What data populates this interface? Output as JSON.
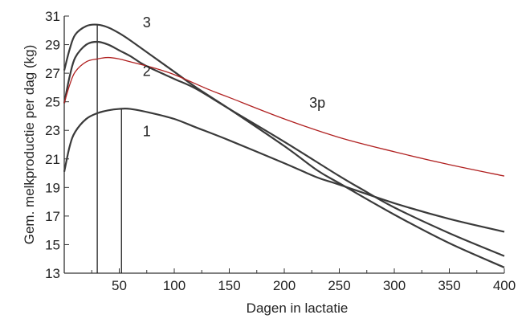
{
  "chart_data": {
    "type": "line",
    "xlabel": "Dagen in lactatie",
    "ylabel": "Gem. melkproductie per dag (kg)",
    "xlim": [
      0,
      400
    ],
    "ylim": [
      13,
      31
    ],
    "xticks": [
      50,
      100,
      150,
      200,
      250,
      300,
      350,
      400
    ],
    "yticks": [
      13,
      15,
      17,
      19,
      21,
      23,
      25,
      27,
      29,
      31
    ],
    "grid": false,
    "series": [
      {
        "name": "1",
        "color": "#3a3a3a",
        "x": [
          0,
          5,
          10,
          20,
          30,
          40,
          50,
          60,
          80,
          100,
          120,
          150,
          200,
          230,
          250,
          300,
          350,
          400
        ],
        "y": [
          20.1,
          21.9,
          22.9,
          23.8,
          24.2,
          24.4,
          24.5,
          24.5,
          24.2,
          23.8,
          23.2,
          22.3,
          20.7,
          19.7,
          19.2,
          17.9,
          16.8,
          15.9
        ]
      },
      {
        "name": "2",
        "color": "#3a3a3a",
        "x": [
          0,
          5,
          10,
          20,
          30,
          40,
          50,
          60,
          70,
          80,
          100,
          120,
          150,
          200,
          250,
          270,
          300,
          350,
          400
        ],
        "y": [
          24.9,
          26.8,
          28.1,
          29.0,
          29.2,
          29.0,
          28.6,
          28.2,
          27.7,
          27.3,
          26.6,
          25.9,
          24.5,
          22.2,
          19.8,
          18.9,
          17.6,
          15.8,
          14.2
        ]
      },
      {
        "name": "3",
        "color": "#3a3a3a",
        "x": [
          0,
          5,
          10,
          20,
          30,
          40,
          50,
          60,
          80,
          100,
          120,
          150,
          200,
          230,
          250,
          300,
          350,
          400
        ],
        "y": [
          27.2,
          28.7,
          29.7,
          30.3,
          30.4,
          30.2,
          29.8,
          29.3,
          28.2,
          27.1,
          26.0,
          24.5,
          21.9,
          20.2,
          19.3,
          17.1,
          15.1,
          13.4
        ]
      },
      {
        "name": "3p",
        "color": "#b02020",
        "x": [
          0,
          5,
          10,
          20,
          30,
          40,
          50,
          60,
          80,
          100,
          130,
          150,
          200,
          250,
          300,
          350,
          400
        ],
        "y": [
          24.9,
          26.2,
          27.1,
          27.8,
          28.0,
          28.1,
          28.0,
          27.8,
          27.4,
          26.9,
          25.9,
          25.3,
          23.8,
          22.5,
          21.5,
          20.6,
          19.8
        ]
      }
    ],
    "reference_lines": [
      {
        "x": 30,
        "y_top": 30.4
      },
      {
        "x": 52,
        "y_top": 24.5
      }
    ]
  }
}
